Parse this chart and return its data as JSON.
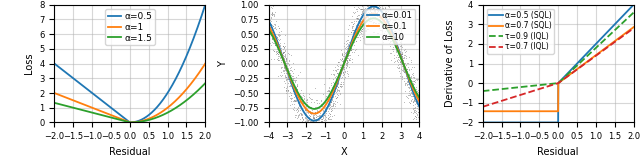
{
  "panel1": {
    "xlabel": "Residual",
    "ylabel": "Loss",
    "xlim": [
      -2.0,
      2.0
    ],
    "ylim": [
      0,
      8
    ],
    "yticks": [
      0,
      1,
      2,
      3,
      4,
      5,
      6,
      7,
      8
    ],
    "xticks": [
      -2.0,
      -1.5,
      -1.0,
      -0.5,
      0.0,
      0.5,
      1.0,
      1.5,
      2.0
    ],
    "alphas": [
      0.5,
      1.0,
      1.5
    ],
    "colors": [
      "#1f77b4",
      "#ff7f0e",
      "#2ca02c"
    ],
    "labels": [
      "α=0.5",
      "α=1",
      "α=1.5"
    ]
  },
  "panel2": {
    "xlabel": "X",
    "ylabel": "Y",
    "xlim": [
      -4,
      4
    ],
    "ylim": [
      -1.0,
      1.0
    ],
    "yticks": [
      -1.0,
      -0.75,
      -0.5,
      -0.25,
      0.0,
      0.25,
      0.5,
      0.75,
      1.0
    ],
    "xticks": [
      -4,
      -3,
      -2,
      -1,
      0,
      1,
      2,
      3,
      4
    ],
    "alphas": [
      0.01,
      0.1,
      10
    ],
    "colors": [
      "#1f77b4",
      "#ff7f0e",
      "#2ca02c"
    ],
    "labels": [
      "α=0.01",
      "α=0.1",
      "α=10"
    ],
    "amplitudes": [
      0.97,
      0.85,
      0.77
    ],
    "noise_std": 0.2,
    "n_points": 2000,
    "noise_seed": 0
  },
  "panel3": {
    "xlabel": "Residual",
    "ylabel": "Derivative of Loss",
    "xlim": [
      -2.0,
      2.0
    ],
    "ylim": [
      -2,
      4
    ],
    "yticks": [
      -2,
      -1,
      0,
      1,
      2,
      3,
      4
    ],
    "xticks": [
      -2.0,
      -1.5,
      -1.0,
      -0.5,
      0.0,
      0.5,
      1.0,
      1.5,
      2.0
    ],
    "sql_alphas": [
      0.5,
      0.7
    ],
    "sql_colors": [
      "#1f77b4",
      "#ff7f0e"
    ],
    "sql_labels": [
      "α=0.5 (SQL)",
      "α=0.7 (SQL)"
    ],
    "iql_taus": [
      0.9,
      0.7
    ],
    "iql_colors": [
      "#2ca02c",
      "#d62728"
    ],
    "iql_labels": [
      "τ=0.9 (IQL)",
      "τ=0.7 (IQL)"
    ]
  },
  "figsize": [
    6.4,
    1.57
  ],
  "dpi": 100,
  "label_fontsize": 7,
  "tick_fontsize": 6,
  "legend_fontsize1": 6.5,
  "legend_fontsize2": 6,
  "legend_fontsize3": 5.5,
  "linewidth": 1.3
}
